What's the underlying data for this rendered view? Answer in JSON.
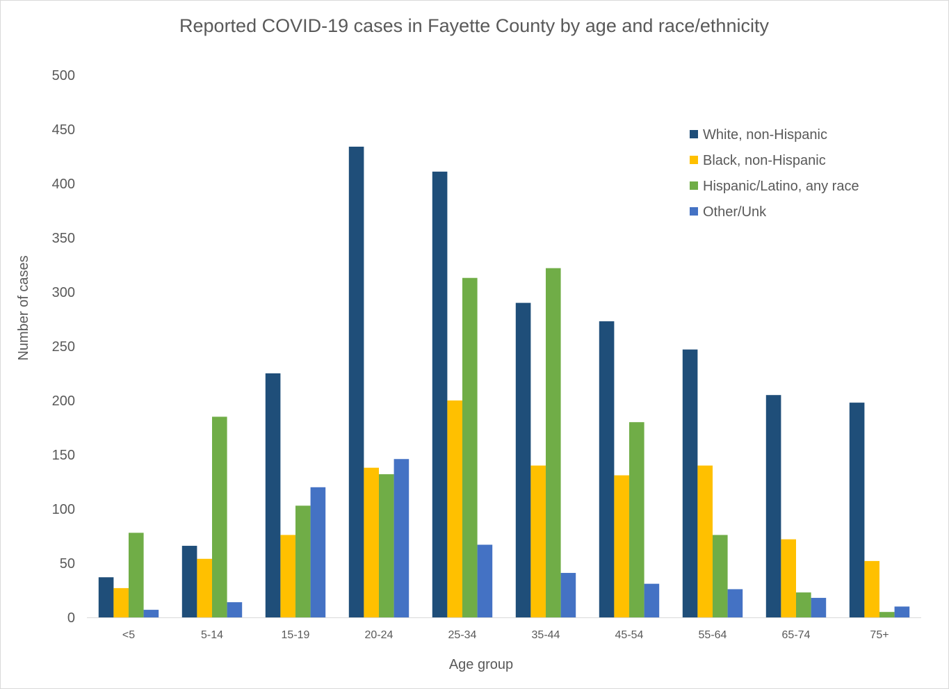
{
  "chart_data": {
    "type": "bar",
    "title": "Reported COVID-19 cases in Fayette County by age and race/ethnicity",
    "xlabel": "Age group",
    "ylabel": "Number of cases",
    "ylim": [
      0,
      500
    ],
    "yticks": [
      0,
      50,
      100,
      150,
      200,
      250,
      300,
      350,
      400,
      450,
      500
    ],
    "grid": false,
    "legend_position": "top-right",
    "categories": [
      "<5",
      "5-14",
      "15-19",
      "20-24",
      "25-34",
      "35-44",
      "45-54",
      "55-64",
      "65-74",
      "75+"
    ],
    "series": [
      {
        "name": "White, non-Hispanic",
        "color": "#1f4e79",
        "values": [
          37,
          66,
          225,
          434,
          411,
          290,
          273,
          247,
          205,
          198
        ]
      },
      {
        "name": "Black, non-Hispanic",
        "color": "#ffc000",
        "values": [
          27,
          54,
          76,
          138,
          200,
          140,
          131,
          140,
          72,
          52
        ]
      },
      {
        "name": "Hispanic/Latino, any race",
        "color": "#70ad47",
        "values": [
          78,
          185,
          103,
          132,
          313,
          322,
          180,
          76,
          23,
          5
        ]
      },
      {
        "name": "Other/Unk",
        "color": "#4472c4",
        "values": [
          7,
          14,
          120,
          146,
          67,
          41,
          31,
          26,
          18,
          10
        ]
      }
    ]
  }
}
